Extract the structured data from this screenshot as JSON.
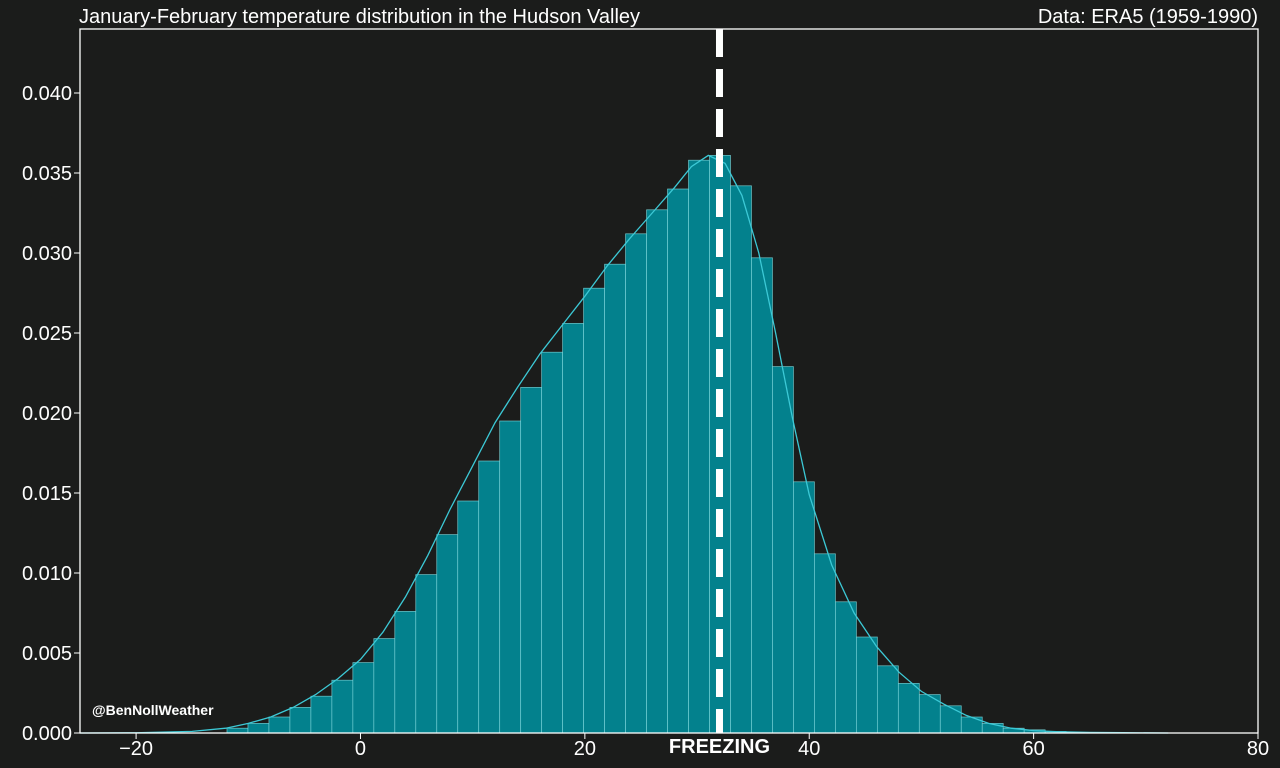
{
  "header": {
    "title": "January-February temperature distribution in the Hudson Valley",
    "source": "Data: ERA5 (1959-1990)"
  },
  "colors": {
    "background": "#1b1c1b",
    "bar_fill": "#03818d",
    "bar_edge": "#7fd8dd",
    "kde_line": "#3cc9d6",
    "axis": "#ffffff",
    "marker_line": "#ffffff"
  },
  "chart_data": {
    "type": "bar",
    "subtype": "histogram with density curve",
    "title": "January-February temperature distribution in the Hudson Valley",
    "xlabel": "",
    "ylabel": "",
    "xlim": [
      -25,
      80
    ],
    "ylim": [
      0,
      0.044
    ],
    "x_ticks": [
      -20,
      0,
      20,
      40,
      60,
      80
    ],
    "x_tick_labels": [
      "−20",
      "0",
      "20",
      "40",
      "60",
      "80"
    ],
    "y_ticks": [
      0,
      0.005,
      0.01,
      0.015,
      0.02,
      0.025,
      0.03,
      0.035,
      0.04
    ],
    "y_tick_labels": [
      "0.000",
      "0.005",
      "0.010",
      "0.015",
      "0.020",
      "0.025",
      "0.030",
      "0.035",
      "0.040"
    ],
    "grid": false,
    "bin_width": 1.87,
    "bins": [
      {
        "x0": -11.9,
        "value": 0.0003
      },
      {
        "x0": -10.03,
        "value": 0.0006
      },
      {
        "x0": -8.16,
        "value": 0.001
      },
      {
        "x0": -6.29,
        "value": 0.0016
      },
      {
        "x0": -4.42,
        "value": 0.0023
      },
      {
        "x0": -2.55,
        "value": 0.0033
      },
      {
        "x0": -0.68,
        "value": 0.0044
      },
      {
        "x0": 1.19,
        "value": 0.0059
      },
      {
        "x0": 3.06,
        "value": 0.0076
      },
      {
        "x0": 4.93,
        "value": 0.0099
      },
      {
        "x0": 6.8,
        "value": 0.0124
      },
      {
        "x0": 8.67,
        "value": 0.0145
      },
      {
        "x0": 10.54,
        "value": 0.017
      },
      {
        "x0": 12.41,
        "value": 0.0195
      },
      {
        "x0": 14.28,
        "value": 0.0216
      },
      {
        "x0": 16.15,
        "value": 0.0238
      },
      {
        "x0": 18.02,
        "value": 0.0256
      },
      {
        "x0": 19.89,
        "value": 0.0278
      },
      {
        "x0": 21.76,
        "value": 0.0293
      },
      {
        "x0": 23.63,
        "value": 0.0312
      },
      {
        "x0": 25.5,
        "value": 0.0327
      },
      {
        "x0": 27.37,
        "value": 0.034
      },
      {
        "x0": 29.24,
        "value": 0.0358
      },
      {
        "x0": 31.11,
        "value": 0.0361
      },
      {
        "x0": 32.98,
        "value": 0.0342
      },
      {
        "x0": 34.85,
        "value": 0.0297
      },
      {
        "x0": 36.72,
        "value": 0.0229
      },
      {
        "x0": 38.59,
        "value": 0.0157
      },
      {
        "x0": 40.46,
        "value": 0.0112
      },
      {
        "x0": 42.33,
        "value": 0.0082
      },
      {
        "x0": 44.2,
        "value": 0.006
      },
      {
        "x0": 46.07,
        "value": 0.0042
      },
      {
        "x0": 47.94,
        "value": 0.0031
      },
      {
        "x0": 49.81,
        "value": 0.0024
      },
      {
        "x0": 51.68,
        "value": 0.0017
      },
      {
        "x0": 53.55,
        "value": 0.001
      },
      {
        "x0": 55.42,
        "value": 0.0006
      },
      {
        "x0": 57.29,
        "value": 0.0003
      },
      {
        "x0": 59.16,
        "value": 0.0002
      },
      {
        "x0": 61.03,
        "value": 0.0001
      }
    ],
    "kde": [
      [
        -25,
        0
      ],
      [
        -20,
        1e-05
      ],
      [
        -15,
        0.0001
      ],
      [
        -12,
        0.0003
      ],
      [
        -10,
        0.0006
      ],
      [
        -8,
        0.001
      ],
      [
        -6,
        0.0016
      ],
      [
        -4,
        0.0024
      ],
      [
        -2,
        0.0034
      ],
      [
        0,
        0.0046
      ],
      [
        2,
        0.0063
      ],
      [
        4,
        0.0085
      ],
      [
        6,
        0.0111
      ],
      [
        8,
        0.014
      ],
      [
        10,
        0.0167
      ],
      [
        12,
        0.0194
      ],
      [
        14,
        0.0216
      ],
      [
        16,
        0.0237
      ],
      [
        18,
        0.0255
      ],
      [
        20,
        0.0273
      ],
      [
        22,
        0.0292
      ],
      [
        24,
        0.0309
      ],
      [
        26,
        0.0325
      ],
      [
        28,
        0.0341
      ],
      [
        29.5,
        0.0354
      ],
      [
        31,
        0.0361
      ],
      [
        32.5,
        0.0356
      ],
      [
        34,
        0.0336
      ],
      [
        35.5,
        0.03
      ],
      [
        37,
        0.025
      ],
      [
        38.5,
        0.0197
      ],
      [
        40,
        0.0149
      ],
      [
        42,
        0.0105
      ],
      [
        44,
        0.0075
      ],
      [
        46,
        0.0054
      ],
      [
        48,
        0.0038
      ],
      [
        50,
        0.0026
      ],
      [
        52,
        0.0018
      ],
      [
        54,
        0.0011
      ],
      [
        56,
        0.0006
      ],
      [
        58,
        0.0003
      ],
      [
        60,
        0.00015
      ],
      [
        62,
        8e-05
      ],
      [
        65,
        4e-05
      ],
      [
        68,
        2e-05
      ],
      [
        72,
        0
      ]
    ],
    "marker": {
      "x": 32,
      "label": "FREEZING"
    },
    "annotations": [
      "@BenNollWeather"
    ]
  }
}
